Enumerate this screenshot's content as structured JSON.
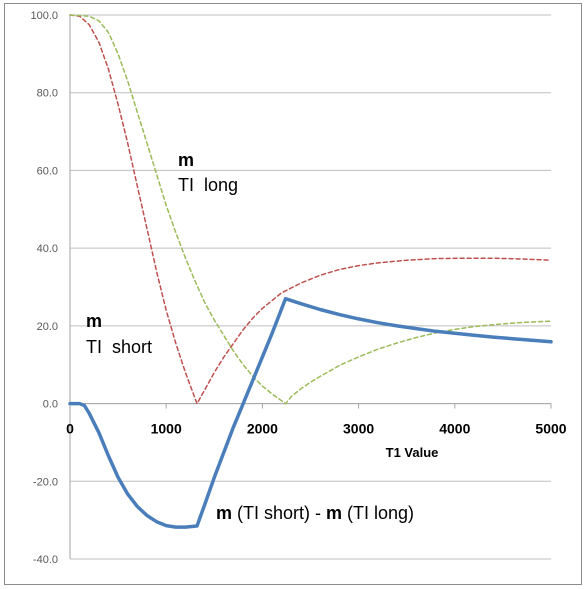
{
  "chart_data": {
    "type": "line",
    "xlabel": "T1 Value",
    "ylabel": "",
    "xlim": [
      0,
      5000
    ],
    "ylim": [
      -40,
      100
    ],
    "x_ticks": [
      "0",
      "1000",
      "2000",
      "3000",
      "4000",
      "5000"
    ],
    "y_ticks": [
      "100.0",
      "80.0",
      "60.0",
      "40.0",
      "20.0",
      "0.0",
      "-20.0",
      "-40.0"
    ],
    "grid": "horizontal",
    "legend": "none",
    "annotations": {
      "long": {
        "bold": "m",
        "rest": "TI  long"
      },
      "short": {
        "bold": "m",
        "rest": "TI  short"
      },
      "diff": {
        "bold1": "m",
        "mid": " (TI short) - ",
        "bold2": "m",
        "end": " (TI long)"
      }
    },
    "series": [
      {
        "key": "ti_short",
        "color": "#c0504d",
        "style": "dashed",
        "points": [
          [
            0,
            100
          ],
          [
            100,
            99.7
          ],
          [
            200,
            97.5
          ],
          [
            300,
            93
          ],
          [
            400,
            86
          ],
          [
            500,
            77
          ],
          [
            600,
            67
          ],
          [
            700,
            56
          ],
          [
            800,
            45
          ],
          [
            900,
            34
          ],
          [
            1000,
            24
          ],
          [
            1100,
            15.5
          ],
          [
            1200,
            8
          ],
          [
            1320,
            0
          ],
          [
            1400,
            3.5
          ],
          [
            1500,
            8
          ],
          [
            1600,
            12
          ],
          [
            1700,
            15.5
          ],
          [
            1800,
            19
          ],
          [
            1900,
            22
          ],
          [
            2000,
            24.5
          ],
          [
            2100,
            26.5
          ],
          [
            2200,
            28.5
          ],
          [
            2400,
            31
          ],
          [
            2600,
            33
          ],
          [
            2800,
            34.5
          ],
          [
            3000,
            35.5
          ],
          [
            3200,
            36.2
          ],
          [
            3500,
            36.9
          ],
          [
            3800,
            37.3
          ],
          [
            4100,
            37.4
          ],
          [
            4400,
            37.4
          ],
          [
            4700,
            37.2
          ],
          [
            5000,
            36.9
          ]
        ]
      },
      {
        "key": "ti_long",
        "color": "#9bbb59",
        "style": "dashed",
        "points": [
          [
            0,
            100
          ],
          [
            200,
            99.7
          ],
          [
            300,
            98.5
          ],
          [
            400,
            95.5
          ],
          [
            500,
            90
          ],
          [
            600,
            83
          ],
          [
            700,
            75
          ],
          [
            800,
            67
          ],
          [
            900,
            59
          ],
          [
            1000,
            51
          ],
          [
            1100,
            44
          ],
          [
            1200,
            37.5
          ],
          [
            1300,
            31.5
          ],
          [
            1400,
            26
          ],
          [
            1500,
            21.5
          ],
          [
            1600,
            17.5
          ],
          [
            1700,
            13.5
          ],
          [
            1800,
            10
          ],
          [
            1900,
            7
          ],
          [
            2000,
            4.5
          ],
          [
            2100,
            2.5
          ],
          [
            2240,
            0
          ],
          [
            2300,
            1.8
          ],
          [
            2400,
            3.8
          ],
          [
            2500,
            5.5
          ],
          [
            2600,
            7
          ],
          [
            2800,
            9.8
          ],
          [
            3000,
            12
          ],
          [
            3200,
            14
          ],
          [
            3400,
            15.6
          ],
          [
            3600,
            17
          ],
          [
            3800,
            18.2
          ],
          [
            4000,
            19.1
          ],
          [
            4200,
            19.8
          ],
          [
            4400,
            20.3
          ],
          [
            4600,
            20.7
          ],
          [
            4800,
            21
          ],
          [
            5000,
            21.2
          ]
        ]
      },
      {
        "key": "difference",
        "color": "#4a7ebb",
        "style": "solid",
        "points": [
          [
            0,
            0
          ],
          [
            100,
            0
          ],
          [
            150,
            -0.5
          ],
          [
            200,
            -2.5
          ],
          [
            300,
            -7.5
          ],
          [
            400,
            -13.5
          ],
          [
            500,
            -19
          ],
          [
            600,
            -23.3
          ],
          [
            700,
            -26.5
          ],
          [
            800,
            -28.8
          ],
          [
            900,
            -30.4
          ],
          [
            1000,
            -31.4
          ],
          [
            1100,
            -31.8
          ],
          [
            1200,
            -31.8
          ],
          [
            1320,
            -31.5
          ],
          [
            1400,
            -26
          ],
          [
            1500,
            -19
          ],
          [
            1600,
            -12.5
          ],
          [
            1700,
            -6
          ],
          [
            1800,
            0
          ],
          [
            1900,
            6
          ],
          [
            2000,
            12
          ],
          [
            2100,
            18
          ],
          [
            2240,
            27
          ],
          [
            2400,
            25.7
          ],
          [
            2600,
            24.2
          ],
          [
            2800,
            22.9
          ],
          [
            3000,
            21.8
          ],
          [
            3200,
            20.8
          ],
          [
            3400,
            20
          ],
          [
            3600,
            19.3
          ],
          [
            3800,
            18.6
          ],
          [
            4000,
            18.1
          ],
          [
            4200,
            17.6
          ],
          [
            4400,
            17.1
          ],
          [
            4600,
            16.7
          ],
          [
            4800,
            16.3
          ],
          [
            5000,
            15.9
          ]
        ]
      }
    ]
  }
}
